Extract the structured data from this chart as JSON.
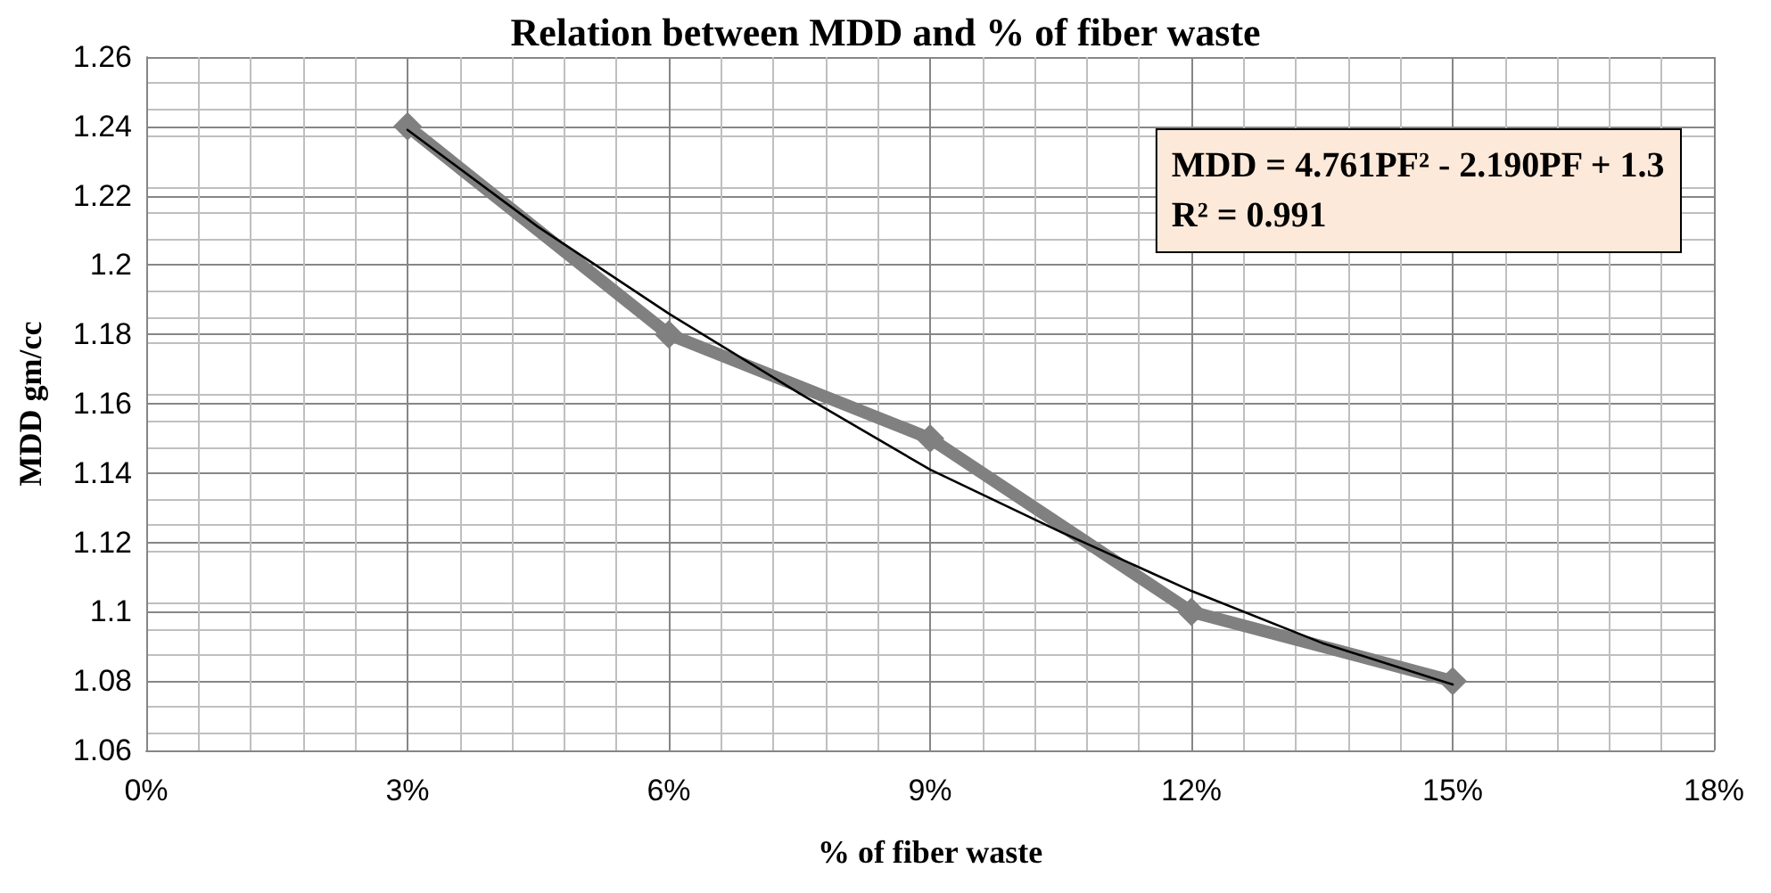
{
  "chart_data": {
    "type": "line",
    "title": "Relation between MDD and % of fiber waste",
    "xlabel": "% of fiber waste",
    "ylabel": "MDD gm/cc",
    "annotations": [
      "MDD = 4.761PF² - 2.190PF + 1.3",
      "R² = 0.991"
    ],
    "x": [
      3,
      6,
      9,
      12,
      15
    ],
    "series": [
      {
        "color": "#808080",
        "values": [
          1.24,
          1.18,
          1.15,
          1.1,
          1.08
        ],
        "marker": "diamond"
      },
      {
        "type": "line",
        "color": "#000000",
        "x": [
          3,
          4.5,
          6,
          7.5,
          9,
          10.5,
          12,
          13.5,
          15
        ],
        "values": [
          1.239,
          1.211,
          1.186,
          1.163,
          1.141,
          1.123,
          1.106,
          1.091,
          1.079
        ],
        "marker": "none"
      }
    ],
    "xlim": [
      0,
      18
    ],
    "xticks": [
      {
        "value": 0,
        "label": "0%"
      },
      {
        "value": 3,
        "label": "3%"
      },
      {
        "value": 6,
        "label": "6%"
      },
      {
        "value": 9,
        "label": "9%"
      },
      {
        "value": 12,
        "label": "12%"
      },
      {
        "value": 15,
        "label": "15%"
      },
      {
        "value": 18,
        "label": "18%"
      }
    ],
    "ylim": [
      1.06,
      1.26
    ],
    "yticks": [
      1.06,
      1.08,
      1.1,
      1.12,
      1.14,
      1.16,
      1.18,
      1.2,
      1.22,
      1.24,
      1.26
    ],
    "grid": true
  }
}
